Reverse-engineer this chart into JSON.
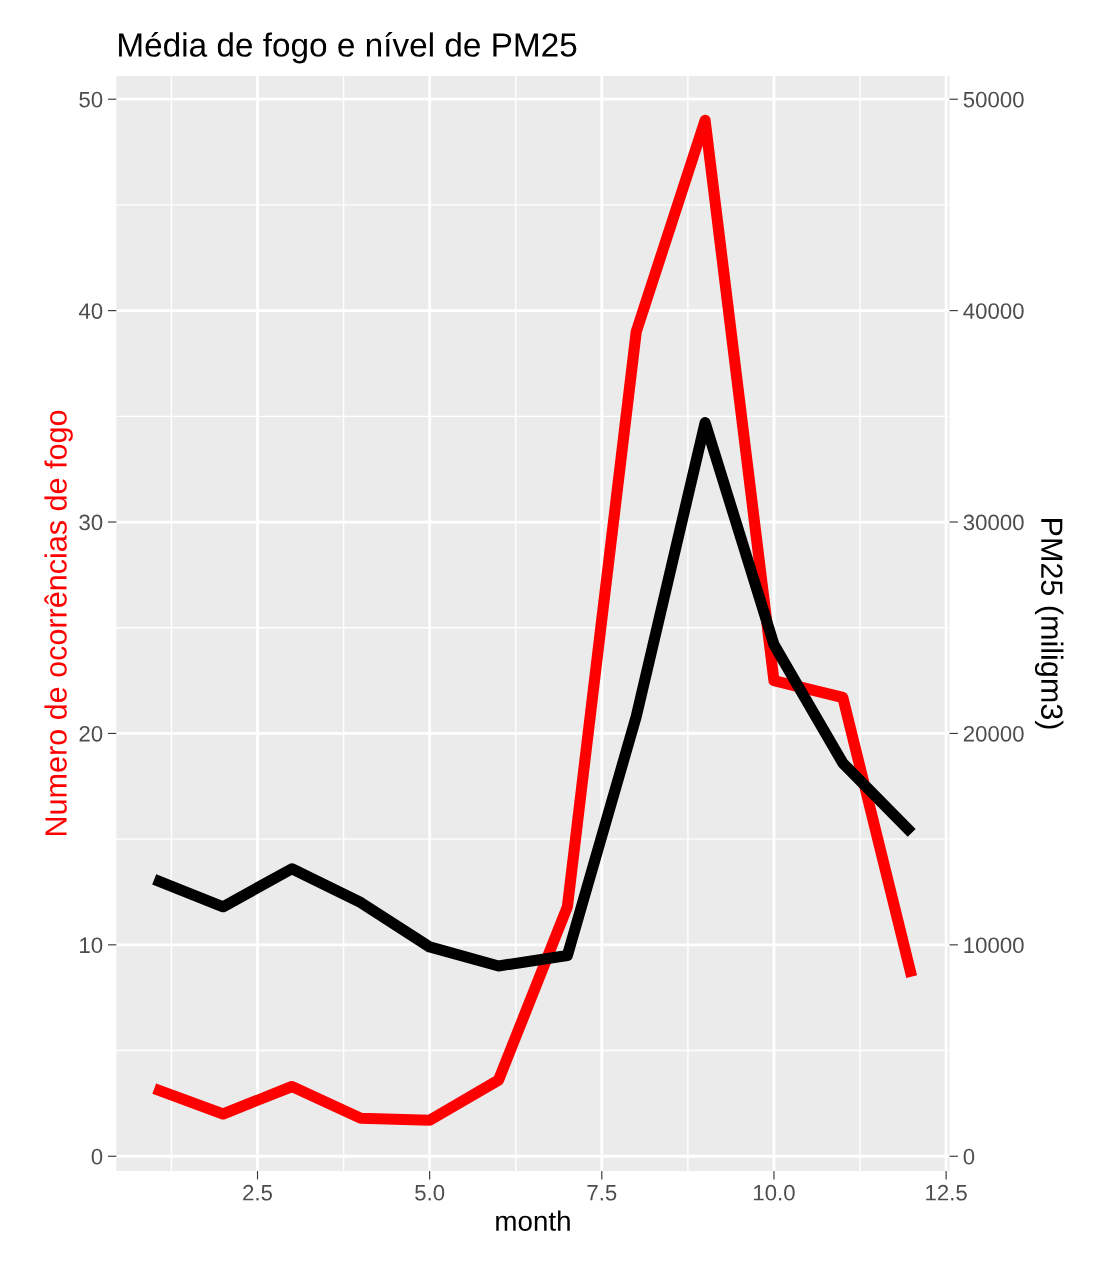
{
  "chart_data": {
    "type": "line",
    "title": "Média de fogo e nível de PM25",
    "xlabel": "month",
    "ylabel": "Numero de ocorrências de fogo",
    "y2label": "PM25 (miligm3)",
    "x": [
      1,
      2,
      3,
      4,
      5,
      6,
      7,
      8,
      9,
      10,
      11,
      12
    ],
    "series": [
      {
        "color": "#ff0000",
        "values": [
          3.2,
          2.0,
          3.3,
          1.8,
          1.7,
          3.6,
          11.8,
          39.0,
          49.0,
          22.5,
          21.7,
          8.5
        ]
      },
      {
        "color": "#000000",
        "axis": "y2",
        "values": [
          13100,
          11800,
          13600,
          12000,
          9900,
          9000,
          9500,
          20800,
          34700,
          24200,
          18600,
          15300
        ]
      }
    ],
    "xlim": [
      0.45,
      12.55
    ],
    "xticks": [
      {
        "value": 2.5,
        "label": "2.5"
      },
      {
        "value": 5,
        "label": "5.0"
      },
      {
        "value": 7.5,
        "label": "7.5"
      },
      {
        "value": 10,
        "label": "10.0"
      },
      {
        "value": 12.5,
        "label": "12.5"
      }
    ],
    "ylim": [
      -0.7,
      51.1
    ],
    "yticks": [
      0,
      10,
      20,
      30,
      40,
      50
    ],
    "y2lim": [
      -700,
      51100
    ],
    "y2ticks": [
      0,
      10000,
      20000,
      30000,
      40000,
      50000
    ],
    "grid": true,
    "line_style": "solid",
    "marker": "none"
  }
}
